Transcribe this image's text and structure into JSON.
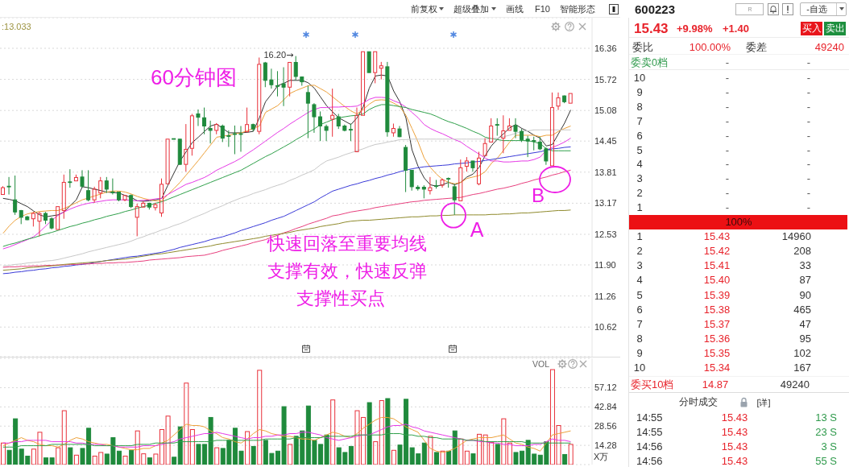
{
  "chart_data": [
    {
      "type": "candlestick",
      "categories": [
        null,
        null,
        null,
        null,
        null,
        null,
        null,
        null,
        null,
        null,
        null,
        null,
        null,
        null,
        null,
        null,
        null,
        null,
        null,
        null,
        null,
        null,
        null,
        null,
        null,
        null,
        null,
        null,
        null,
        null,
        null,
        null,
        null,
        null,
        null,
        null,
        null,
        null,
        null,
        null,
        null,
        null,
        null,
        null,
        null,
        null,
        null,
        null,
        null,
        null,
        null,
        null,
        null,
        null,
        null,
        null,
        null,
        null,
        null,
        null,
        null,
        null,
        null,
        null,
        null,
        null,
        null,
        null,
        null,
        null,
        null,
        null,
        null,
        null,
        null,
        null,
        null,
        null,
        null,
        null,
        null,
        null,
        null,
        null,
        null,
        null,
        null,
        null,
        null,
        null,
        null,
        null,
        null,
        null
      ],
      "ohlc": [
        [
          13.35,
          13.52,
          13.33,
          13.49
        ],
        [
          13.52,
          13.71,
          13.35,
          13.51
        ],
        [
          13.24,
          13.74,
          12.93,
          12.99
        ],
        [
          13.02,
          13.03,
          12.74,
          12.88
        ],
        [
          12.89,
          12.91,
          12.82,
          12.83
        ],
        [
          12.85,
          12.99,
          12.69,
          12.96
        ],
        [
          12.8,
          12.99,
          12.49,
          12.96
        ],
        [
          12.96,
          12.99,
          12.74,
          12.82
        ],
        [
          12.85,
          12.88,
          12.63,
          12.66
        ],
        [
          12.63,
          13.1,
          12.63,
          13.1
        ],
        [
          13.02,
          13.76,
          12.85,
          13.6
        ],
        [
          13.61,
          13.87,
          13.49,
          13.6
        ],
        [
          13.63,
          13.76,
          13.61,
          13.7
        ],
        [
          13.71,
          13.85,
          13.49,
          13.52
        ],
        [
          13.43,
          13.85,
          13.21,
          13.24
        ],
        [
          13.24,
          13.51,
          13.18,
          13.46
        ],
        [
          13.38,
          13.71,
          13.27,
          13.63
        ],
        [
          13.63,
          13.71,
          13.38,
          13.46
        ],
        [
          13.4,
          13.68,
          13.35,
          13.39
        ],
        [
          13.4,
          13.4,
          13.21,
          13.24
        ],
        [
          13.24,
          13.35,
          13.21,
          13.33
        ],
        [
          13.33,
          13.35,
          13.07,
          13.1
        ],
        [
          12.88,
          13.16,
          12.49,
          13.1
        ],
        [
          13.09,
          13.21,
          13.07,
          13.17
        ],
        [
          13.17,
          13.18,
          13.04,
          13.09
        ],
        [
          13.08,
          13.18,
          13.02,
          13.14
        ],
        [
          12.97,
          13.68,
          12.89,
          13.56
        ],
        [
          13.57,
          14.49,
          13.57,
          14.49
        ],
        [
          14.5,
          14.5,
          14.49,
          14.49
        ],
        [
          14.49,
          14.49,
          13.96,
          13.97
        ],
        [
          13.97,
          14.8,
          13.82,
          14.28
        ],
        [
          14.3,
          15.01,
          14.15,
          14.97
        ],
        [
          15.01,
          15.1,
          14.76,
          14.94
        ],
        [
          14.93,
          15.14,
          14.59,
          14.76
        ],
        [
          14.71,
          14.87,
          14.4,
          14.67
        ],
        [
          14.67,
          14.82,
          14.59,
          14.79
        ],
        [
          14.76,
          14.79,
          14.43,
          14.51
        ],
        [
          14.56,
          14.67,
          14.33,
          14.55
        ],
        [
          14.6,
          14.77,
          14.18,
          14.59
        ],
        [
          14.6,
          14.76,
          14.23,
          14.59
        ],
        [
          14.64,
          15.14,
          14.64,
          14.79
        ],
        [
          14.79,
          14.81,
          14.65,
          14.7
        ],
        [
          14.65,
          16.17,
          14.59,
          16.03
        ],
        [
          16.06,
          16.08,
          15.56,
          15.7
        ],
        [
          15.71,
          15.94,
          15.53,
          15.61
        ],
        [
          15.59,
          15.89,
          15.37,
          15.58
        ],
        [
          15.63,
          15.97,
          15.17,
          15.56
        ],
        [
          15.56,
          16.07,
          15.37,
          16.07
        ],
        [
          16.07,
          16.2,
          15.7,
          15.78
        ],
        [
          15.77,
          15.78,
          15.59,
          15.67
        ],
        [
          15.45,
          15.59,
          14.51,
          15.23
        ],
        [
          15.2,
          15.23,
          14.62,
          14.95
        ],
        [
          14.95,
          15.06,
          14.45,
          14.76
        ],
        [
          14.75,
          14.79,
          14.45,
          14.67
        ],
        [
          14.9,
          15.53,
          14.54,
          14.98
        ],
        [
          14.95,
          15.01,
          14.7,
          14.76
        ],
        [
          14.76,
          14.79,
          14.65,
          14.67
        ],
        [
          14.69,
          14.81,
          14.45,
          14.68
        ],
        [
          14.23,
          15.14,
          14.23,
          14.98
        ],
        [
          14.98,
          16.29,
          14.98,
          16.29
        ],
        [
          16.29,
          16.29,
          15.86,
          15.86
        ],
        [
          15.86,
          16.29,
          15.64,
          16.29
        ],
        [
          15.95,
          16.08,
          15.72,
          16.0
        ],
        [
          15.98,
          16.08,
          14.54,
          14.64
        ],
        [
          14.62,
          14.81,
          14.54,
          14.71
        ],
        [
          14.7,
          14.76,
          14.53,
          14.54
        ],
        [
          14.32,
          14.37,
          13.4,
          13.85
        ],
        [
          13.85,
          13.85,
          13.43,
          13.51
        ],
        [
          13.5,
          13.54,
          13.43,
          13.47
        ],
        [
          13.5,
          13.54,
          13.27,
          13.46
        ],
        [
          13.43,
          13.71,
          13.35,
          13.49
        ],
        [
          13.53,
          13.65,
          13.47,
          13.52
        ],
        [
          13.54,
          13.68,
          13.49,
          13.65
        ],
        [
          13.68,
          13.7,
          13.49,
          13.67
        ],
        [
          13.51,
          13.57,
          12.93,
          13.24
        ],
        [
          13.22,
          14.07,
          13.22,
          13.9
        ],
        [
          13.93,
          14.12,
          13.82,
          14.04
        ],
        [
          14.04,
          14.04,
          13.82,
          13.9
        ],
        [
          13.57,
          14.23,
          13.54,
          14.1
        ],
        [
          14.15,
          14.51,
          14.15,
          14.4
        ],
        [
          14.43,
          14.92,
          14.43,
          14.76
        ],
        [
          14.79,
          14.92,
          14.56,
          14.78
        ],
        [
          14.51,
          14.98,
          14.2,
          14.66
        ],
        [
          14.67,
          14.92,
          14.65,
          14.76
        ],
        [
          14.77,
          14.92,
          14.51,
          14.65
        ],
        [
          14.65,
          14.7,
          14.43,
          14.48
        ],
        [
          14.49,
          14.56,
          14.12,
          14.45
        ],
        [
          14.46,
          14.54,
          14.26,
          14.45
        ],
        [
          14.43,
          14.54,
          14.26,
          14.29
        ],
        [
          14.29,
          14.32,
          13.96,
          14.04
        ],
        [
          13.94,
          15.45,
          13.94,
          15.14
        ],
        [
          15.17,
          15.45,
          15.09,
          15.34
        ],
        [
          15.38,
          15.39,
          15.23,
          15.26
        ],
        [
          15.23,
          15.43,
          15.23,
          15.43
        ]
      ],
      "colors": [
        "#e8303a",
        "#1f8a3c",
        "#1f8a3c",
        "#1f8a3c",
        "#1f8a3c",
        "#e8303a",
        "#e8303a",
        "#1f8a3c",
        "#1f8a3c",
        "#e8303a",
        "#e8303a",
        "#1f8a3c",
        "#e8303a",
        "#1f8a3c",
        "#1f8a3c",
        "#e8303a",
        "#e8303a",
        "#1f8a3c",
        "#1f8a3c",
        "#1f8a3c",
        "#e8303a",
        "#1f8a3c",
        "#e8303a",
        "#e8303a",
        "#1f8a3c",
        "#e8303a",
        "#e8303a",
        "#e8303a",
        "#1f8a3c",
        "#1f8a3c",
        "#e8303a",
        "#e8303a",
        "#1f8a3c",
        "#1f8a3c",
        "#1f8a3c",
        "#e8303a",
        "#1f8a3c",
        "#1f8a3c",
        "#1f8a3c",
        "#1f8a3c",
        "#e8303a",
        "#1f8a3c",
        "#e8303a",
        "#1f8a3c",
        "#1f8a3c",
        "#1f8a3c",
        "#1f8a3c",
        "#e8303a",
        "#1f8a3c",
        "#1f8a3c",
        "#1f8a3c",
        "#1f8a3c",
        "#1f8a3c",
        "#1f8a3c",
        "#e8303a",
        "#1f8a3c",
        "#1f8a3c",
        "#1f8a3c",
        "#e8303a",
        "#e8303a",
        "#1f8a3c",
        "#e8303a",
        "#e8303a",
        "#1f8a3c",
        "#e8303a",
        "#1f8a3c",
        "#1f8a3c",
        "#1f8a3c",
        "#1f8a3c",
        "#1f8a3c",
        "#e8303a",
        "#1f8a3c",
        "#e8303a",
        "#1f8a3c",
        "#1f8a3c",
        "#e8303a",
        "#e8303a",
        "#1f8a3c",
        "#e8303a",
        "#e8303a",
        "#e8303a",
        "#1f8a3c",
        "#e8303a",
        "#e8303a",
        "#1f8a3c",
        "#1f8a3c",
        "#1f8a3c",
        "#1f8a3c",
        "#1f8a3c",
        "#1f8a3c",
        "#e8303a",
        "#e8303a",
        "#1f8a3c",
        "#e8303a"
      ],
      "series": [
        {
          "type": "line",
          "color": "#333333",
          "values": [
            13.27,
            13.25,
            13.22,
            13.16,
            13.1,
            13.01,
            12.93,
            12.89,
            12.91,
            12.93,
            12.99,
            13.12,
            13.24,
            13.51,
            13.49,
            13.46,
            13.43,
            13.4,
            13.39,
            13.38,
            13.33,
            13.29,
            13.22,
            13.21,
            13.22,
            13.24,
            13.27,
            13.54,
            13.79,
            14.04,
            14.23,
            14.42,
            14.53,
            14.65,
            14.76,
            14.8,
            14.71,
            14.62,
            14.62,
            14.62,
            14.63,
            14.65,
            14.93,
            15.26,
            15.42,
            15.59,
            15.64,
            15.7,
            15.7,
            15.7,
            15.65,
            15.54,
            15.36,
            15.18,
            15.05,
            14.93,
            14.86,
            14.79,
            14.93,
            15.15,
            15.54,
            15.79,
            15.81,
            15.79,
            15.48,
            15.26,
            14.93,
            14.27,
            13.93,
            13.69,
            13.55,
            13.52,
            13.55,
            13.6,
            13.55,
            13.6,
            13.71,
            13.77,
            13.91,
            14.15,
            14.35,
            14.49,
            14.6,
            14.72,
            14.79,
            14.71,
            14.65,
            14.57,
            14.51,
            14.35,
            14.38,
            14.6,
            14.82,
            15.09
          ]
        },
        {
          "type": "line",
          "color": "#eda13a",
          "values": [
            12.55,
            12.7,
            12.82,
            12.9,
            12.95,
            12.98,
            13.0,
            13.01,
            13.02,
            13.02,
            13.06,
            13.12,
            13.18,
            13.24,
            13.28,
            13.32,
            13.36,
            13.4,
            13.42,
            13.42,
            13.4,
            13.36,
            13.31,
            13.27,
            13.24,
            13.22,
            13.22,
            13.35,
            13.47,
            13.6,
            13.75,
            13.9,
            14.05,
            14.21,
            14.37,
            14.53,
            14.55,
            14.57,
            14.6,
            14.62,
            14.66,
            14.71,
            14.76,
            15.04,
            15.11,
            15.18,
            15.3,
            15.43,
            15.49,
            15.54,
            15.59,
            15.6,
            15.53,
            15.46,
            15.36,
            15.26,
            15.16,
            15.07,
            15.01,
            15.1,
            15.21,
            15.29,
            15.3,
            15.29,
            15.23,
            15.16,
            14.98,
            14.71,
            14.43,
            14.1,
            13.91,
            13.77,
            13.66,
            13.6,
            13.57,
            13.6,
            13.68,
            13.71,
            13.74,
            13.82,
            13.99,
            14.1,
            14.26,
            14.43,
            14.57,
            14.57,
            14.57,
            14.57,
            14.54,
            14.57,
            14.57,
            14.65,
            14.71,
            14.76
          ]
        },
        {
          "type": "line",
          "color": "#e639e6",
          "values": [
            12.23,
            12.27,
            12.32,
            12.37,
            12.42,
            12.48,
            12.58,
            12.7,
            12.82,
            12.92,
            12.99,
            13.05,
            13.1,
            13.14,
            13.17,
            13.19,
            13.21,
            13.23,
            13.24,
            13.24,
            13.24,
            13.23,
            13.22,
            13.23,
            13.24,
            13.26,
            13.27,
            13.35,
            13.42,
            13.49,
            13.56,
            13.6,
            13.65,
            13.7,
            13.77,
            13.85,
            13.91,
            13.97,
            14.03,
            14.1,
            14.19,
            14.27,
            14.36,
            14.45,
            14.54,
            14.63,
            14.71,
            14.8,
            14.88,
            14.96,
            15.04,
            15.1,
            15.14,
            15.14,
            15.15,
            15.15,
            15.16,
            15.16,
            15.17,
            15.23,
            15.31,
            15.35,
            15.35,
            15.34,
            15.28,
            15.23,
            15.15,
            15.04,
            14.93,
            14.79,
            14.71,
            14.65,
            14.6,
            14.54,
            14.48,
            14.43,
            14.34,
            14.26,
            14.18,
            14.1,
            14.04,
            14.04,
            14.02,
            14.02,
            14.03,
            14.04,
            14.04,
            14.07,
            14.12,
            14.26,
            14.32,
            14.37,
            14.43,
            14.51
          ]
        },
        {
          "type": "line",
          "color": "#2fa04a",
          "values": [
            12.28,
            12.32,
            12.35,
            12.39,
            12.43,
            12.46,
            12.5,
            12.54,
            12.57,
            12.61,
            12.65,
            12.69,
            12.72,
            12.76,
            12.79,
            12.83,
            12.86,
            12.9,
            12.93,
            12.96,
            13.0,
            13.03,
            13.07,
            13.1,
            13.13,
            13.17,
            13.2,
            13.25,
            13.3,
            13.35,
            13.4,
            13.45,
            13.5,
            13.55,
            13.6,
            13.65,
            13.7,
            13.75,
            13.8,
            13.85,
            13.92,
            13.99,
            14.06,
            14.13,
            14.19,
            14.26,
            14.33,
            14.4,
            14.48,
            14.55,
            14.63,
            14.7,
            14.79,
            14.84,
            14.89,
            14.93,
            14.95,
            14.97,
            14.98,
            15.01,
            15.1,
            15.16,
            15.2,
            15.2,
            15.18,
            15.16,
            15.14,
            15.1,
            15.07,
            15.04,
            15.01,
            14.96,
            14.9,
            14.85,
            14.81,
            14.76,
            14.71,
            14.65,
            14.6,
            14.53,
            14.5,
            14.48,
            14.46,
            14.46,
            14.46,
            14.46,
            14.46,
            14.43,
            14.4,
            14.29,
            14.25,
            14.25,
            14.25,
            14.25
          ]
        },
        {
          "type": "line",
          "color": "#c8c8c8",
          "values": [
            11.88,
            11.89,
            11.91,
            11.92,
            11.94,
            11.95,
            11.96,
            11.98,
            11.99,
            12.01,
            12.04,
            12.07,
            12.1,
            12.13,
            12.17,
            12.2,
            12.23,
            12.26,
            12.29,
            12.32,
            12.35,
            12.39,
            12.44,
            12.48,
            12.53,
            12.57,
            12.62,
            12.66,
            12.71,
            12.75,
            12.8,
            12.86,
            12.91,
            12.96,
            13.02,
            13.07,
            13.12,
            13.18,
            13.23,
            13.28,
            13.32,
            13.37,
            13.41,
            13.45,
            13.5,
            13.54,
            13.58,
            13.64,
            13.69,
            13.75,
            13.8,
            13.86,
            13.96,
            14.04,
            14.08,
            14.12,
            14.17,
            14.21,
            14.25,
            14.29,
            14.34,
            14.38,
            14.4,
            14.43,
            14.45,
            14.48,
            14.48,
            14.49,
            14.49,
            14.49,
            14.49,
            14.49,
            14.49,
            14.49,
            14.49,
            14.49,
            14.49,
            14.49,
            14.49,
            14.49,
            14.5,
            14.51,
            14.54,
            14.57,
            14.61,
            14.65,
            14.66,
            14.68,
            14.68,
            14.68,
            14.68,
            14.68,
            14.68,
            14.68
          ]
        },
        {
          "type": "line",
          "color": "#3a3ad8",
          "values": [
            11.72,
            11.73,
            11.75,
            11.76,
            11.78,
            11.79,
            11.81,
            11.82,
            11.84,
            11.85,
            11.87,
            11.88,
            11.9,
            11.91,
            11.93,
            11.95,
            11.97,
            11.99,
            12.01,
            12.03,
            12.05,
            12.07,
            12.08,
            12.1,
            12.12,
            12.14,
            12.16,
            12.19,
            12.22,
            12.26,
            12.29,
            12.32,
            12.35,
            12.38,
            12.42,
            12.45,
            12.48,
            12.52,
            12.56,
            12.61,
            12.65,
            12.69,
            12.73,
            12.77,
            12.82,
            12.86,
            12.9,
            12.96,
            13.02,
            13.08,
            13.14,
            13.2,
            13.28,
            13.35,
            13.42,
            13.46,
            13.5,
            13.54,
            13.57,
            13.61,
            13.64,
            13.68,
            13.71,
            13.75,
            13.78,
            13.82,
            13.85,
            13.88,
            13.9,
            13.92,
            13.93,
            13.94,
            13.95,
            13.96,
            13.98,
            13.99,
            14.0,
            14.02,
            14.03,
            14.05,
            14.07,
            14.09,
            14.11,
            14.13,
            14.15,
            14.17,
            14.19,
            14.21,
            14.23,
            14.26,
            14.29,
            14.3,
            14.32,
            14.33
          ]
        },
        {
          "type": "line",
          "color": "#e8407e",
          "values": [
            11.85,
            11.86,
            11.86,
            11.87,
            11.87,
            11.88,
            11.88,
            11.89,
            11.89,
            11.9,
            11.9,
            11.91,
            11.91,
            11.92,
            11.92,
            11.93,
            11.93,
            11.94,
            11.94,
            11.95,
            11.95,
            11.96,
            11.97,
            11.98,
            12.0,
            12.01,
            12.02,
            12.03,
            12.04,
            12.05,
            12.07,
            12.08,
            12.09,
            12.1,
            12.13,
            12.16,
            12.2,
            12.23,
            12.26,
            12.29,
            12.32,
            12.36,
            12.39,
            12.42,
            12.47,
            12.51,
            12.56,
            12.6,
            12.65,
            12.69,
            12.74,
            12.78,
            12.82,
            12.86,
            12.91,
            12.93,
            12.96,
            12.99,
            13.01,
            13.03,
            13.05,
            13.08,
            13.1,
            13.12,
            13.14,
            13.16,
            13.18,
            13.2,
            13.21,
            13.23,
            13.24,
            13.25,
            13.26,
            13.27,
            13.28,
            13.29,
            13.32,
            13.35,
            13.37,
            13.4,
            13.43,
            13.46,
            13.48,
            13.51,
            13.54,
            13.58,
            13.61,
            13.65,
            13.68,
            13.71,
            13.75,
            13.78,
            13.82,
            13.85
          ]
        },
        {
          "type": "line",
          "color": "#8f8a2c",
          "values": [
            11.79,
            11.8,
            11.81,
            11.82,
            11.84,
            11.85,
            11.86,
            11.87,
            11.88,
            11.89,
            11.91,
            11.92,
            11.93,
            11.94,
            11.95,
            11.96,
            11.97,
            11.99,
            12.0,
            12.01,
            12.02,
            12.04,
            12.06,
            12.08,
            12.1,
            12.12,
            12.13,
            12.15,
            12.17,
            12.19,
            12.21,
            12.23,
            12.25,
            12.27,
            12.29,
            12.32,
            12.34,
            12.36,
            12.38,
            12.4,
            12.42,
            12.44,
            12.46,
            12.49,
            12.51,
            12.53,
            12.55,
            12.57,
            12.6,
            12.62,
            12.64,
            12.66,
            12.69,
            12.71,
            12.73,
            12.75,
            12.78,
            12.8,
            12.81,
            12.82,
            12.82,
            12.83,
            12.84,
            12.85,
            12.86,
            12.87,
            12.88,
            12.89,
            12.89,
            12.9,
            12.91,
            12.91,
            12.92,
            12.92,
            12.93,
            12.93,
            12.93,
            12.93,
            12.93,
            12.93,
            12.94,
            12.94,
            12.95,
            12.95,
            12.96,
            12.97,
            12.97,
            12.98,
            12.99,
            13.0,
            13.01,
            13.02,
            13.02,
            13.03
          ]
        }
      ],
      "ylim": [
        10.01,
        16.99
      ],
      "yticks": [
        16.36,
        15.72,
        15.08,
        14.45,
        13.81,
        13.17,
        12.53,
        {
          "value": 11.9,
          "label": "11.90"
        },
        11.26,
        10.62
      ],
      "grid": "y",
      "annotations": [
        ":13.033",
        "60分钟图",
        "快速回落至重要均线",
        "支撑有效，快速反弹",
        "支撑性买点",
        "A",
        "B",
        "16.20",
        "前复权",
        "超级叠加",
        "画线",
        "F10",
        "智能形态"
      ]
    },
    {
      "type": "bar",
      "title": "VOL",
      "ylabel": "X万",
      "categories": [
        null,
        null,
        null,
        null,
        null,
        null,
        null,
        null,
        null,
        null,
        null,
        null,
        null,
        null,
        null,
        null,
        null,
        null,
        null,
        null,
        null,
        null,
        null,
        null,
        null,
        null,
        null,
        null,
        null,
        null,
        null,
        null,
        null,
        null,
        null,
        null,
        null,
        null,
        null,
        null,
        null,
        null,
        null,
        null,
        null,
        null,
        null,
        null,
        null,
        null,
        null,
        null,
        null,
        null,
        null,
        null,
        null,
        null,
        null,
        null,
        null,
        null,
        null,
        null,
        null,
        null,
        null,
        null,
        null,
        null,
        null,
        null,
        null,
        null,
        null,
        null,
        null,
        null,
        null,
        null,
        null,
        null,
        null,
        null,
        null,
        null,
        null,
        null,
        null,
        null,
        null,
        null,
        null,
        null
      ],
      "values": [
        16,
        10.6,
        34,
        11.5,
        6.3,
        11.5,
        24,
        5,
        5,
        12.5,
        40,
        12.5,
        7,
        12,
        27,
        6.3,
        9,
        7.8,
        20,
        10,
        6.3,
        10.6,
        25,
        8,
        5,
        7.8,
        26,
        36,
        5.5,
        28,
        60.5,
        26,
        15,
        15,
        35,
        12.5,
        12,
        18,
        27,
        10,
        24.5,
        13.5,
        70,
        18,
        8.3,
        10,
        43,
        15,
        21,
        25,
        43.5,
        18,
        15,
        22,
        48,
        12.5,
        9,
        13.5,
        40,
        35,
        46,
        17,
        47.5,
        49,
        10.6,
        14.5,
        48.5,
        12.5,
        8,
        16,
        21,
        9,
        10,
        10,
        25,
        19,
        10,
        8,
        22.5,
        22,
        16.5,
        15,
        34,
        16,
        9,
        10,
        18,
        7.8,
        7,
        17,
        70.5,
        29,
        7.5,
        15
      ],
      "colors": [
        "#e8303a",
        "#1f8a3c",
        "#1f8a3c",
        "#1f8a3c",
        "#1f8a3c",
        "#e8303a",
        "#e8303a",
        "#1f8a3c",
        "#1f8a3c",
        "#e8303a",
        "#e8303a",
        "#1f8a3c",
        "#e8303a",
        "#1f8a3c",
        "#1f8a3c",
        "#e8303a",
        "#e8303a",
        "#1f8a3c",
        "#1f8a3c",
        "#1f8a3c",
        "#e8303a",
        "#1f8a3c",
        "#e8303a",
        "#e8303a",
        "#1f8a3c",
        "#e8303a",
        "#e8303a",
        "#e8303a",
        "#1f8a3c",
        "#1f8a3c",
        "#e8303a",
        "#e8303a",
        "#1f8a3c",
        "#1f8a3c",
        "#1f8a3c",
        "#e8303a",
        "#1f8a3c",
        "#1f8a3c",
        "#1f8a3c",
        "#1f8a3c",
        "#e8303a",
        "#1f8a3c",
        "#e8303a",
        "#1f8a3c",
        "#1f8a3c",
        "#1f8a3c",
        "#1f8a3c",
        "#e8303a",
        "#1f8a3c",
        "#1f8a3c",
        "#1f8a3c",
        "#1f8a3c",
        "#1f8a3c",
        "#1f8a3c",
        "#e8303a",
        "#1f8a3c",
        "#1f8a3c",
        "#1f8a3c",
        "#e8303a",
        "#e8303a",
        "#1f8a3c",
        "#e8303a",
        "#e8303a",
        "#1f8a3c",
        "#e8303a",
        "#1f8a3c",
        "#1f8a3c",
        "#1f8a3c",
        "#1f8a3c",
        "#1f8a3c",
        "#e8303a",
        "#1f8a3c",
        "#e8303a",
        "#1f8a3c",
        "#1f8a3c",
        "#e8303a",
        "#e8303a",
        "#1f8a3c",
        "#e8303a",
        "#e8303a",
        "#e8303a",
        "#1f8a3c",
        "#e8303a",
        "#e8303a",
        "#1f8a3c",
        "#1f8a3c",
        "#1f8a3c",
        "#1f8a3c",
        "#1f8a3c",
        "#1f8a3c",
        "#e8303a",
        "#e8303a",
        "#1f8a3c",
        "#e8303a"
      ],
      "series": [
        {
          "type": "line",
          "color": "#eda13a",
          "values": [
            14,
            16,
            18,
            20,
            18,
            17,
            15,
            14,
            14,
            13,
            15,
            18,
            20,
            19,
            17,
            16,
            15,
            15,
            14,
            13,
            12,
            11,
            11,
            12,
            12,
            14,
            16,
            18,
            22,
            26,
            30,
            29,
            29,
            28,
            25,
            23,
            20,
            19,
            17,
            16,
            19,
            23,
            26,
            25,
            23,
            22,
            21,
            21,
            20,
            19,
            19,
            18,
            20,
            22,
            24,
            23,
            21,
            20,
            23,
            27,
            30,
            33,
            35,
            35,
            34,
            31,
            28,
            26,
            24,
            18,
            12,
            10,
            9,
            10,
            12,
            15,
            18,
            19,
            20,
            20,
            20,
            21,
            22,
            19,
            16,
            15,
            13,
            12,
            10,
            16,
            22,
            23,
            24,
            25
          ]
        },
        {
          "type": "line",
          "color": "#e639e6",
          "values": [
            16,
            16,
            17,
            17,
            18,
            18,
            18,
            18,
            17,
            17,
            17,
            17,
            16,
            16,
            15,
            15,
            15,
            14,
            14,
            13,
            13,
            13,
            13,
            14,
            14,
            14,
            15,
            16,
            17,
            19,
            20,
            21,
            22,
            23,
            23,
            24,
            23,
            22,
            21,
            20,
            19,
            20,
            20,
            21,
            21,
            22,
            22,
            23,
            23,
            24,
            24,
            23,
            22,
            20,
            19,
            18,
            19,
            20,
            21,
            22,
            22,
            24,
            26,
            28,
            29,
            29,
            30,
            28,
            27,
            25,
            24,
            23,
            22,
            21,
            20,
            19,
            18,
            18,
            17,
            17,
            16,
            16,
            15,
            15,
            14,
            14,
            14,
            15,
            15,
            17,
            19,
            18,
            18,
            17
          ]
        },
        {
          "type": "line",
          "color": "#2fa04a",
          "values": [
            13,
            13,
            13,
            14,
            14,
            14,
            14,
            14,
            15,
            15,
            15,
            15,
            15,
            15,
            15,
            14,
            14,
            14,
            14,
            14,
            14,
            14,
            15,
            15,
            15,
            16,
            16,
            16,
            16,
            17,
            17,
            17,
            17,
            17,
            17,
            18,
            18,
            18,
            18,
            18,
            18,
            18,
            18,
            19,
            19,
            19,
            19,
            19,
            20,
            20,
            20,
            20,
            20,
            21,
            21,
            21,
            21,
            21,
            22,
            22,
            22,
            22,
            22,
            23,
            23,
            23,
            22,
            22,
            21,
            21,
            20,
            20,
            19,
            19,
            19,
            19,
            18,
            18,
            18,
            17,
            17,
            17,
            17,
            17,
            17,
            17,
            16,
            16,
            16,
            16,
            16,
            16,
            16,
            16
          ]
        }
      ],
      "ylim": [
        0,
        78.9
      ],
      "yticks": [
        14.28,
        28.56,
        42.84,
        57.12
      ],
      "grid": "y"
    },
    {
      "type": "other",
      "annotations": [
        "600223",
        "R",
        "-自选",
        "15.43",
        "+9.98%",
        "+1.40",
        "买入",
        "卖出",
        "委比",
        "100.00%",
        "委差",
        "49240",
        "委卖0档",
        "-",
        "-",
        "10",
        "-",
        "-",
        "9",
        "-",
        "-",
        "8",
        "-",
        "-",
        "7",
        "-",
        "-",
        "6",
        "-",
        "-",
        "5",
        "-",
        "-",
        "4",
        "-",
        "-",
        "3",
        "-",
        "-",
        "2",
        "-",
        "-",
        "1",
        "-",
        "-",
        "100%",
        "1",
        "15.43",
        "14960",
        "2",
        "15.42",
        "208",
        "3",
        "15.41",
        "33",
        "4",
        "15.40",
        "87",
        "5",
        "15.39",
        "90",
        "6",
        "15.38",
        "465",
        "7",
        "15.37",
        "47",
        "8",
        "15.36",
        "95",
        "9",
        "15.35",
        "102",
        "10",
        "15.34",
        "167",
        "委买10档",
        "14.87",
        "49240",
        "分时成交",
        "[详]",
        "14:55",
        "15.43",
        "13 S",
        "14:55",
        "15.43",
        "23 S",
        "14:56",
        "15.43",
        "3 S",
        "14:56",
        "15.43",
        "55 S"
      ]
    }
  ]
}
